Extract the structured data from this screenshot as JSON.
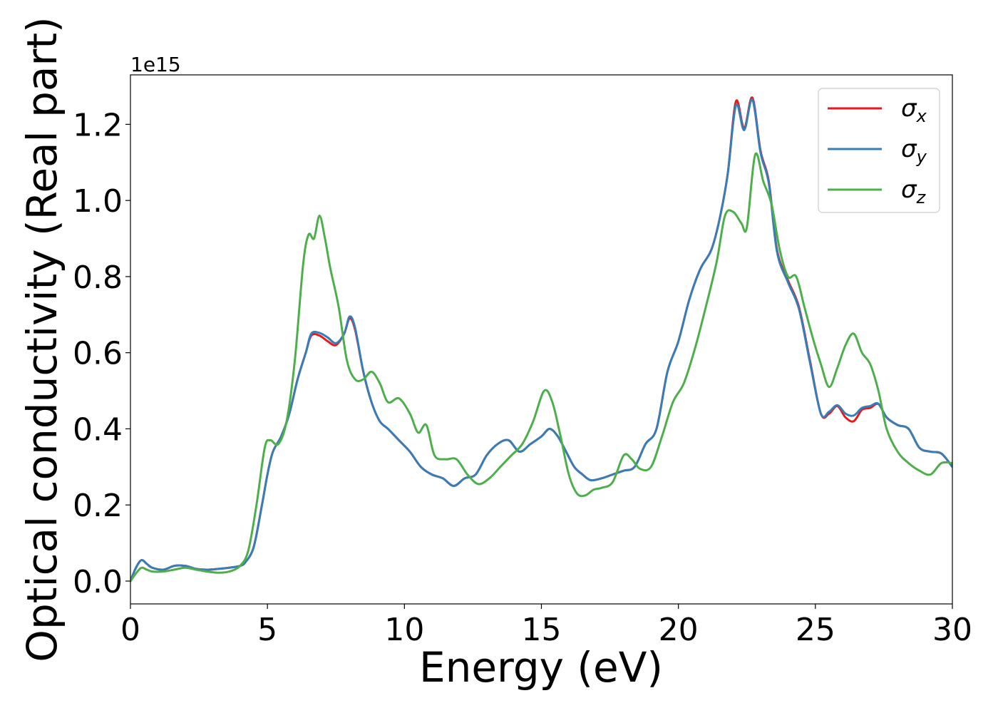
{
  "chart_data": {
    "type": "line",
    "xlabel": "Energy (eV)",
    "ylabel": "Optical conductivity (Real part)",
    "y_offset_text": "1e15",
    "xlim": [
      0,
      30
    ],
    "ylim": [
      -0.06,
      1.33
    ],
    "y_scale_multiplier": 1000000000000000.0,
    "xticks": [
      0,
      5,
      10,
      15,
      20,
      25,
      30
    ],
    "xtick_labels": [
      "0",
      "5",
      "10",
      "15",
      "20",
      "25",
      "30"
    ],
    "yticks": [
      0.0,
      0.2,
      0.4,
      0.6,
      0.8,
      1.0,
      1.2
    ],
    "ytick_labels": [
      "0.0",
      "0.2",
      "0.4",
      "0.6",
      "0.8",
      "1.0",
      "1.2"
    ],
    "grid": false,
    "legend_position": "top-right",
    "series": [
      {
        "name": "σx",
        "name_base": "σ",
        "name_sub": "x",
        "color": "#e41a1c",
        "x": [
          0,
          0.2,
          0.4,
          0.6,
          0.8,
          1.2,
          1.6,
          2.0,
          2.4,
          2.8,
          3.2,
          3.6,
          4.0,
          4.2,
          4.5,
          4.8,
          5.0,
          5.2,
          5.5,
          5.8,
          6.1,
          6.4,
          6.6,
          6.9,
          7.2,
          7.5,
          7.8,
          8.0,
          8.2,
          8.5,
          8.8,
          9.1,
          9.4,
          9.8,
          10.2,
          10.6,
          11.0,
          11.4,
          11.8,
          12.2,
          12.6,
          13.0,
          13.4,
          13.8,
          14.2,
          14.6,
          15.0,
          15.3,
          15.6,
          15.9,
          16.2,
          16.5,
          16.8,
          17.2,
          17.6,
          18.0,
          18.4,
          18.8,
          19.2,
          19.6,
          20.0,
          20.4,
          20.8,
          21.2,
          21.5,
          21.8,
          22.1,
          22.4,
          22.7,
          23.0,
          23.3,
          23.6,
          24.0,
          24.4,
          24.8,
          25.2,
          25.5,
          25.8,
          26.1,
          26.4,
          26.7,
          27.0,
          27.3,
          27.6,
          28.0,
          28.4,
          28.8,
          29.2,
          29.6,
          30.0
        ],
        "y": [
          0.0,
          0.035,
          0.055,
          0.045,
          0.035,
          0.03,
          0.04,
          0.04,
          0.032,
          0.03,
          0.032,
          0.035,
          0.04,
          0.05,
          0.09,
          0.2,
          0.28,
          0.34,
          0.38,
          0.44,
          0.53,
          0.6,
          0.645,
          0.645,
          0.63,
          0.62,
          0.65,
          0.69,
          0.66,
          0.55,
          0.47,
          0.42,
          0.4,
          0.37,
          0.34,
          0.3,
          0.28,
          0.27,
          0.25,
          0.27,
          0.28,
          0.33,
          0.36,
          0.37,
          0.34,
          0.36,
          0.38,
          0.4,
          0.38,
          0.34,
          0.3,
          0.28,
          0.265,
          0.27,
          0.28,
          0.29,
          0.3,
          0.36,
          0.4,
          0.55,
          0.63,
          0.74,
          0.82,
          0.87,
          0.95,
          1.07,
          1.26,
          1.19,
          1.27,
          1.13,
          1.05,
          0.87,
          0.79,
          0.72,
          0.58,
          0.44,
          0.44,
          0.46,
          0.43,
          0.42,
          0.45,
          0.455,
          0.465,
          0.43,
          0.41,
          0.4,
          0.35,
          0.34,
          0.335,
          0.3
        ]
      },
      {
        "name": "σy",
        "name_base": "σ",
        "name_sub": "y",
        "color": "#377eb8",
        "x": [
          0,
          0.2,
          0.4,
          0.6,
          0.8,
          1.2,
          1.6,
          2.0,
          2.4,
          2.8,
          3.2,
          3.6,
          4.0,
          4.2,
          4.5,
          4.8,
          5.0,
          5.2,
          5.5,
          5.8,
          6.1,
          6.4,
          6.6,
          6.9,
          7.2,
          7.5,
          7.8,
          8.0,
          8.2,
          8.5,
          8.8,
          9.1,
          9.4,
          9.8,
          10.2,
          10.6,
          11.0,
          11.4,
          11.8,
          12.2,
          12.6,
          13.0,
          13.4,
          13.8,
          14.2,
          14.6,
          15.0,
          15.3,
          15.6,
          15.9,
          16.2,
          16.5,
          16.8,
          17.2,
          17.6,
          18.0,
          18.4,
          18.8,
          19.2,
          19.6,
          20.0,
          20.4,
          20.8,
          21.2,
          21.5,
          21.8,
          22.1,
          22.4,
          22.7,
          23.0,
          23.3,
          23.6,
          24.0,
          24.4,
          24.8,
          25.2,
          25.5,
          25.8,
          26.1,
          26.4,
          26.7,
          27.0,
          27.3,
          27.6,
          28.0,
          28.4,
          28.8,
          29.2,
          29.6,
          30.0
        ],
        "y": [
          0.0,
          0.035,
          0.055,
          0.045,
          0.035,
          0.03,
          0.04,
          0.04,
          0.032,
          0.03,
          0.032,
          0.035,
          0.04,
          0.05,
          0.09,
          0.2,
          0.28,
          0.34,
          0.38,
          0.44,
          0.53,
          0.6,
          0.65,
          0.652,
          0.64,
          0.625,
          0.65,
          0.695,
          0.665,
          0.55,
          0.47,
          0.42,
          0.4,
          0.37,
          0.34,
          0.3,
          0.28,
          0.27,
          0.25,
          0.27,
          0.28,
          0.33,
          0.36,
          0.37,
          0.34,
          0.36,
          0.38,
          0.4,
          0.38,
          0.34,
          0.3,
          0.28,
          0.265,
          0.27,
          0.28,
          0.29,
          0.3,
          0.36,
          0.4,
          0.55,
          0.63,
          0.74,
          0.82,
          0.87,
          0.95,
          1.07,
          1.25,
          1.185,
          1.265,
          1.125,
          1.045,
          0.865,
          0.785,
          0.715,
          0.575,
          0.44,
          0.445,
          0.462,
          0.44,
          0.435,
          0.455,
          0.46,
          0.466,
          0.43,
          0.41,
          0.4,
          0.35,
          0.34,
          0.335,
          0.3
        ]
      },
      {
        "name": "σz",
        "name_base": "σ",
        "name_sub": "z",
        "color": "#4daf4a",
        "x": [
          0,
          0.2,
          0.4,
          0.6,
          0.8,
          1.2,
          1.6,
          2.0,
          2.4,
          2.8,
          3.2,
          3.6,
          4.0,
          4.3,
          4.6,
          4.9,
          5.1,
          5.4,
          5.7,
          6.0,
          6.3,
          6.5,
          6.7,
          6.9,
          7.1,
          7.3,
          7.6,
          7.9,
          8.2,
          8.5,
          8.8,
          9.1,
          9.4,
          9.8,
          10.2,
          10.5,
          10.8,
          11.1,
          11.5,
          11.9,
          12.3,
          12.7,
          13.1,
          13.5,
          13.9,
          14.3,
          14.7,
          15.1,
          15.4,
          15.7,
          16.0,
          16.3,
          16.6,
          16.9,
          17.2,
          17.6,
          18.0,
          18.3,
          18.6,
          19.0,
          19.4,
          19.8,
          20.2,
          20.6,
          21.0,
          21.4,
          21.7,
          22.0,
          22.3,
          22.5,
          22.8,
          23.1,
          23.4,
          23.7,
          24.0,
          24.3,
          24.6,
          24.9,
          25.2,
          25.5,
          25.8,
          26.1,
          26.4,
          26.7,
          27.0,
          27.3,
          27.6,
          28.0,
          28.4,
          28.8,
          29.2,
          29.6,
          30.0
        ],
        "y": [
          0.0,
          0.02,
          0.035,
          0.03,
          0.025,
          0.025,
          0.03,
          0.035,
          0.03,
          0.025,
          0.022,
          0.025,
          0.04,
          0.08,
          0.2,
          0.35,
          0.37,
          0.36,
          0.42,
          0.58,
          0.83,
          0.91,
          0.9,
          0.96,
          0.9,
          0.82,
          0.72,
          0.58,
          0.53,
          0.53,
          0.55,
          0.52,
          0.47,
          0.48,
          0.44,
          0.39,
          0.41,
          0.33,
          0.32,
          0.32,
          0.28,
          0.255,
          0.27,
          0.3,
          0.33,
          0.36,
          0.42,
          0.5,
          0.47,
          0.38,
          0.28,
          0.23,
          0.225,
          0.24,
          0.245,
          0.26,
          0.33,
          0.32,
          0.295,
          0.3,
          0.38,
          0.47,
          0.52,
          0.61,
          0.72,
          0.84,
          0.96,
          0.97,
          0.94,
          0.93,
          1.12,
          1.05,
          0.99,
          0.87,
          0.8,
          0.8,
          0.72,
          0.64,
          0.57,
          0.51,
          0.56,
          0.62,
          0.65,
          0.6,
          0.57,
          0.5,
          0.4,
          0.34,
          0.31,
          0.29,
          0.28,
          0.31,
          0.31
        ]
      }
    ]
  }
}
